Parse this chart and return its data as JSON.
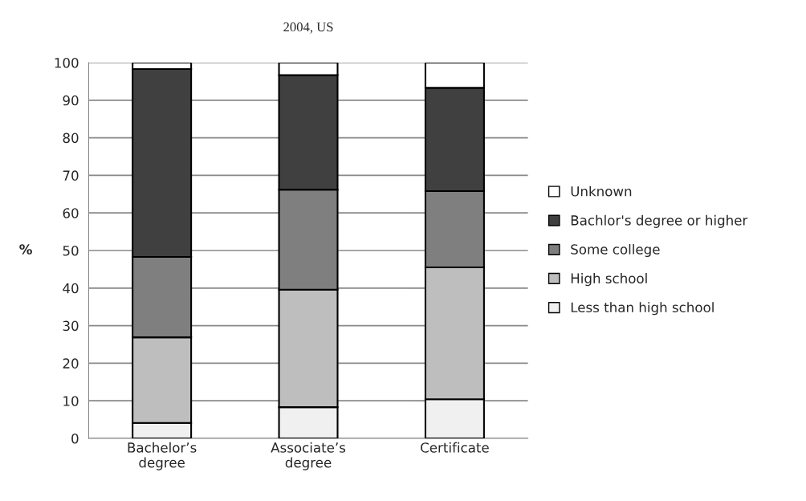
{
  "chart_data": {
    "type": "bar",
    "title": "2004, US",
    "ylabel": "%",
    "stacked": true,
    "categories": [
      "Bachelor’s\ndegree",
      "Associate’s\ndegree",
      "Certificate"
    ],
    "series": [
      {
        "name": "Less than high school",
        "color": "#f0f0f0",
        "values": [
          4.1,
          8.3,
          10.4
        ]
      },
      {
        "name": "High school",
        "color": "#bebebe",
        "values": [
          22.8,
          31.3,
          35.1
        ]
      },
      {
        "name": "Some college",
        "color": "#7f7f7f",
        "values": [
          21.4,
          26.6,
          20.3
        ]
      },
      {
        "name": "Bachlor's degree or higher",
        "color": "#404040",
        "values": [
          50.0,
          30.5,
          27.5
        ]
      },
      {
        "name": "Unknown",
        "color": "#ffffff",
        "values": [
          1.7,
          3.3,
          6.7
        ]
      }
    ],
    "ylim": [
      0,
      100
    ],
    "yticks": [
      0,
      10,
      20,
      30,
      40,
      50,
      60,
      70,
      80,
      90,
      100
    ],
    "grid": "y",
    "legend": "right"
  }
}
